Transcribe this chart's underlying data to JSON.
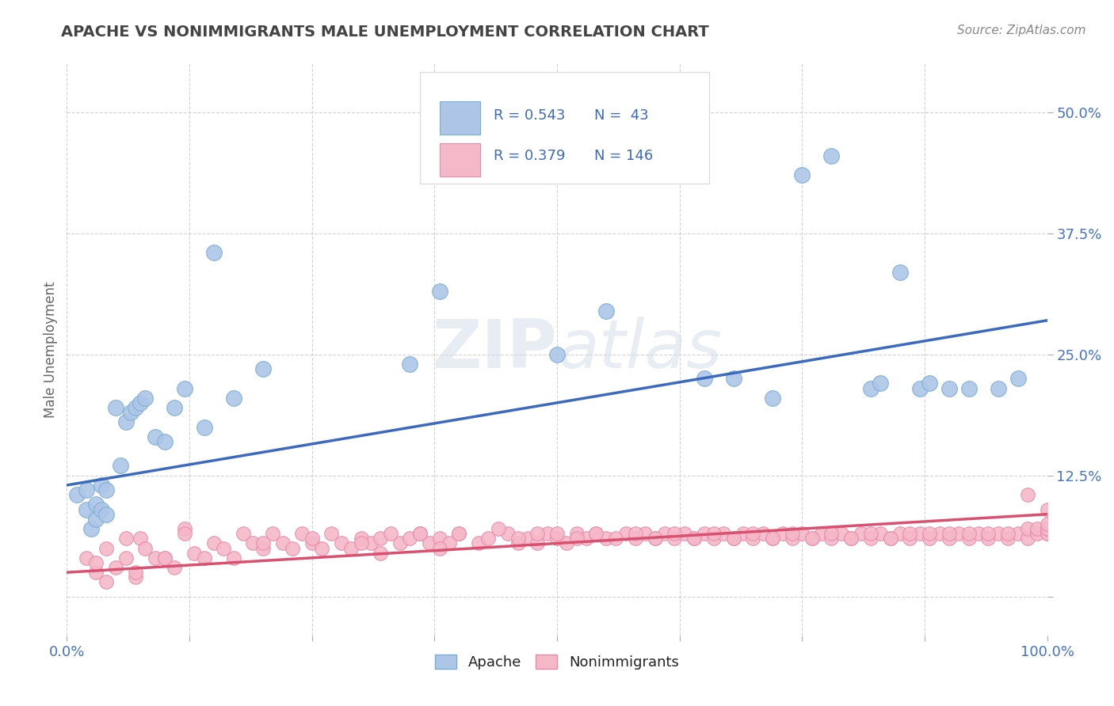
{
  "title": "APACHE VS NONIMMIGRANTS MALE UNEMPLOYMENT CORRELATION CHART",
  "source_text": "Source: ZipAtlas.com",
  "ylabel": "Male Unemployment",
  "xlim": [
    0.0,
    1.0
  ],
  "ylim": [
    -0.04,
    0.55
  ],
  "xticks": [
    0.0,
    0.125,
    0.25,
    0.375,
    0.5,
    0.625,
    0.75,
    0.875,
    1.0
  ],
  "ytick_positions": [
    0.0,
    0.125,
    0.25,
    0.375,
    0.5
  ],
  "ytick_labels": [
    "",
    "12.5%",
    "25.0%",
    "37.5%",
    "50.0%"
  ],
  "apache_color": "#adc6e8",
  "apache_edge_color": "#7aadd4",
  "nonimm_color": "#f5b8c8",
  "nonimm_edge_color": "#e88aaa",
  "apache_line_color": "#3b6abf",
  "nonimm_line_color": "#d95070",
  "apache_R": 0.543,
  "apache_N": 43,
  "nonimm_R": 0.379,
  "nonimm_N": 146,
  "apache_trend_x": [
    0.0,
    1.0
  ],
  "apache_trend_y": [
    0.115,
    0.285
  ],
  "nonimm_trend_x": [
    0.0,
    1.0
  ],
  "nonimm_trend_y": [
    0.025,
    0.085
  ],
  "watermark_zip": "ZIP",
  "watermark_atlas": "atlas",
  "background_color": "#ffffff",
  "grid_color": "#c8c8c8",
  "title_color": "#444444",
  "tick_label_color": "#4472c4",
  "source_color": "#888888",
  "ylabel_color": "#666666",
  "legend_text_color": "#222222",
  "legend_r_color": "#3b6abf",
  "apache_scatter_x": [
    0.01,
    0.02,
    0.02,
    0.025,
    0.03,
    0.03,
    0.035,
    0.035,
    0.04,
    0.04,
    0.05,
    0.055,
    0.06,
    0.065,
    0.07,
    0.075,
    0.08,
    0.09,
    0.1,
    0.11,
    0.12,
    0.14,
    0.15,
    0.17,
    0.2,
    0.35,
    0.38,
    0.5,
    0.55,
    0.65,
    0.68,
    0.72,
    0.75,
    0.78,
    0.82,
    0.83,
    0.85,
    0.87,
    0.88,
    0.9,
    0.92,
    0.95,
    0.97
  ],
  "apache_scatter_y": [
    0.105,
    0.09,
    0.11,
    0.07,
    0.08,
    0.095,
    0.09,
    0.115,
    0.085,
    0.11,
    0.195,
    0.135,
    0.18,
    0.19,
    0.195,
    0.2,
    0.205,
    0.165,
    0.16,
    0.195,
    0.215,
    0.175,
    0.355,
    0.205,
    0.235,
    0.24,
    0.315,
    0.25,
    0.295,
    0.225,
    0.225,
    0.205,
    0.435,
    0.455,
    0.215,
    0.22,
    0.335,
    0.215,
    0.22,
    0.215,
    0.215,
    0.215,
    0.225
  ],
  "nonimm_scatter_x": [
    0.02,
    0.03,
    0.04,
    0.05,
    0.06,
    0.07,
    0.075,
    0.08,
    0.09,
    0.1,
    0.11,
    0.12,
    0.13,
    0.14,
    0.15,
    0.16,
    0.17,
    0.18,
    0.19,
    0.2,
    0.21,
    0.22,
    0.23,
    0.24,
    0.25,
    0.26,
    0.27,
    0.28,
    0.29,
    0.3,
    0.31,
    0.32,
    0.33,
    0.34,
    0.35,
    0.36,
    0.37,
    0.38,
    0.39,
    0.4,
    0.42,
    0.43,
    0.45,
    0.46,
    0.47,
    0.48,
    0.49,
    0.5,
    0.51,
    0.52,
    0.53,
    0.54,
    0.55,
    0.57,
    0.58,
    0.59,
    0.6,
    0.61,
    0.62,
    0.63,
    0.64,
    0.65,
    0.66,
    0.67,
    0.68,
    0.69,
    0.7,
    0.71,
    0.72,
    0.73,
    0.74,
    0.75,
    0.76,
    0.77,
    0.78,
    0.79,
    0.8,
    0.81,
    0.82,
    0.83,
    0.84,
    0.85,
    0.86,
    0.87,
    0.88,
    0.89,
    0.9,
    0.91,
    0.92,
    0.93,
    0.94,
    0.95,
    0.96,
    0.97,
    0.98,
    0.98,
    0.99,
    0.99,
    1.0,
    1.0,
    1.0,
    1.0,
    1.0,
    1.0,
    0.03,
    0.04,
    0.06,
    0.07,
    0.1,
    0.12,
    0.2,
    0.25,
    0.3,
    0.32,
    0.36,
    0.38,
    0.4,
    0.44,
    0.46,
    0.48,
    0.5,
    0.52,
    0.54,
    0.56,
    0.58,
    0.6,
    0.62,
    0.64,
    0.66,
    0.68,
    0.7,
    0.72,
    0.74,
    0.76,
    0.78,
    0.8,
    0.82,
    0.84,
    0.86,
    0.88,
    0.9,
    0.92,
    0.94,
    0.96,
    0.98,
    1.0
  ],
  "nonimm_scatter_y": [
    0.04,
    0.025,
    0.05,
    0.03,
    0.04,
    0.02,
    0.06,
    0.05,
    0.04,
    0.04,
    0.03,
    0.07,
    0.045,
    0.04,
    0.055,
    0.05,
    0.04,
    0.065,
    0.055,
    0.05,
    0.065,
    0.055,
    0.05,
    0.065,
    0.055,
    0.05,
    0.065,
    0.055,
    0.05,
    0.06,
    0.055,
    0.06,
    0.065,
    0.055,
    0.06,
    0.065,
    0.055,
    0.06,
    0.055,
    0.065,
    0.055,
    0.06,
    0.065,
    0.055,
    0.06,
    0.055,
    0.065,
    0.06,
    0.055,
    0.065,
    0.06,
    0.065,
    0.06,
    0.065,
    0.06,
    0.065,
    0.06,
    0.065,
    0.06,
    0.065,
    0.06,
    0.065,
    0.06,
    0.065,
    0.06,
    0.065,
    0.06,
    0.065,
    0.06,
    0.065,
    0.06,
    0.065,
    0.06,
    0.065,
    0.06,
    0.065,
    0.06,
    0.065,
    0.06,
    0.065,
    0.06,
    0.065,
    0.06,
    0.065,
    0.06,
    0.065,
    0.06,
    0.065,
    0.06,
    0.065,
    0.06,
    0.065,
    0.06,
    0.065,
    0.06,
    0.07,
    0.065,
    0.07,
    0.065,
    0.07,
    0.065,
    0.07,
    0.07,
    0.09,
    0.035,
    0.015,
    0.06,
    0.025,
    0.04,
    0.065,
    0.055,
    0.06,
    0.055,
    0.045,
    0.065,
    0.05,
    0.065,
    0.07,
    0.06,
    0.065,
    0.065,
    0.06,
    0.065,
    0.06,
    0.065,
    0.06,
    0.065,
    0.06,
    0.065,
    0.06,
    0.065,
    0.06,
    0.065,
    0.06,
    0.065,
    0.06,
    0.065,
    0.06,
    0.065,
    0.065,
    0.065,
    0.065,
    0.065,
    0.065,
    0.105,
    0.075
  ]
}
